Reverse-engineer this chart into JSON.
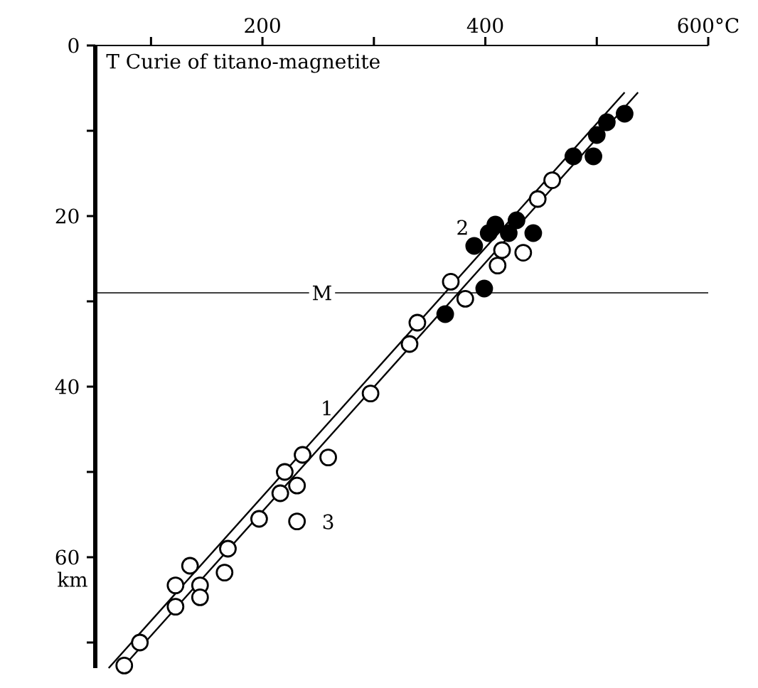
{
  "chart_data": {
    "type": "scatter",
    "title": "T Curie of titano-magnetite",
    "ylabel": "km",
    "xlim": [
      50,
      600
    ],
    "ylim": [
      73,
      0
    ],
    "xticks": [
      {
        "value": 100,
        "label": null
      },
      200,
      {
        "value": 300,
        "label": null
      },
      400,
      {
        "value": 500,
        "label": null
      },
      {
        "value": 600,
        "label": "600°C"
      }
    ],
    "yticks": [
      0,
      {
        "value": 10,
        "label": null
      },
      20,
      {
        "value": 30,
        "label": null
      },
      40,
      {
        "value": 50,
        "label": null
      },
      60,
      {
        "value": 70,
        "label": null
      }
    ],
    "series": [
      {
        "type": "line",
        "color": "#000000",
        "marker": "none",
        "line_style": "solid",
        "x": [
          62,
          525
        ],
        "values": [
          73,
          5.5
        ]
      },
      {
        "type": "line",
        "color": "#000000",
        "marker": "none",
        "line_style": "solid",
        "x": [
          74,
          537
        ],
        "values": [
          73,
          5.5
        ]
      },
      {
        "type": "scatter",
        "color": "#ffffff",
        "marker": "circle",
        "x": [
          460,
          447,
          415,
          434,
          411,
          369,
          382,
          339,
          332,
          297,
          236,
          259,
          220,
          231,
          216,
          197,
          231,
          169,
          135,
          166,
          122,
          144,
          144,
          122,
          90,
          76
        ],
        "values": [
          15.8,
          18,
          24,
          24.3,
          25.8,
          27.7,
          29.7,
          32.5,
          35,
          40.8,
          48,
          48.3,
          50,
          51.6,
          52.5,
          55.5,
          55.8,
          59,
          61,
          61.8,
          63.3,
          63.3,
          64.7,
          65.8,
          70,
          72.7
        ]
      },
      {
        "type": "scatter",
        "color": "#000000",
        "marker": "circle",
        "x": [
          525,
          509,
          500,
          479,
          497,
          409,
          428,
          403,
          443,
          390,
          421,
          399,
          364
        ],
        "values": [
          8,
          9,
          10.5,
          13,
          13,
          21,
          20.5,
          22,
          22,
          23.5,
          22,
          28.5,
          31.5
        ]
      }
    ],
    "ref_lines": [
      {
        "axis": "y",
        "value": 29,
        "label": "M"
      }
    ],
    "annotations": [
      "1",
      "2",
      "3"
    ]
  }
}
